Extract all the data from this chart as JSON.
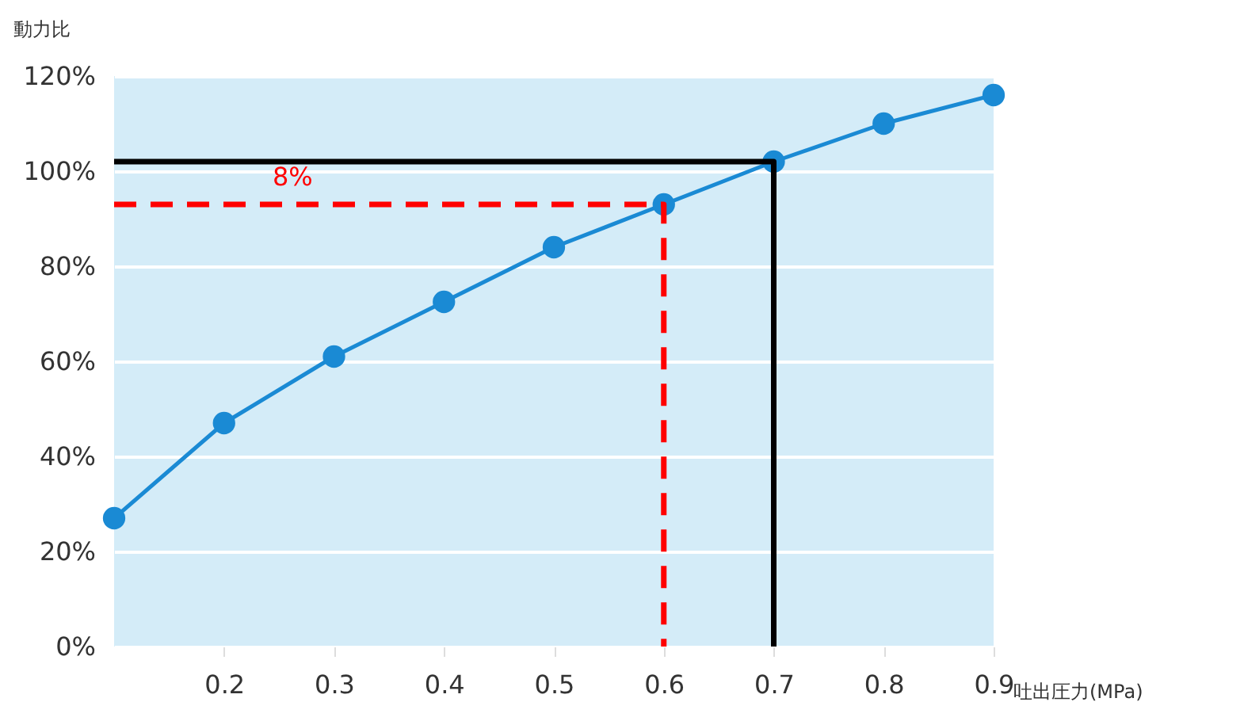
{
  "chart_data": {
    "type": "line",
    "xlabel": "吐出圧力(MPa)",
    "ylabel": "動力比",
    "xlim": [
      0.1,
      0.9
    ],
    "xticks": [
      0.2,
      0.3,
      0.4,
      0.5,
      0.6,
      0.7,
      0.8,
      0.9
    ],
    "ylim": [
      0,
      120
    ],
    "yticks": [
      {
        "value": 0,
        "label": "0%"
      },
      {
        "value": 20,
        "label": "20%"
      },
      {
        "value": 40,
        "label": "40%"
      },
      {
        "value": 60,
        "label": "60%"
      },
      {
        "value": 80,
        "label": "80%"
      },
      {
        "value": 100,
        "label": "100%"
      },
      {
        "value": 120,
        "label": "120%"
      }
    ],
    "grid": "y",
    "series": [
      {
        "type": "line",
        "color": "#1a8ad4",
        "marker": "circle",
        "line_style": "solid",
        "x": [
          0.1,
          0.2,
          0.3,
          0.4,
          0.5,
          0.6,
          0.7,
          0.8,
          0.9
        ],
        "values": [
          27,
          47,
          61,
          72.5,
          84,
          93,
          102,
          110,
          116
        ]
      },
      {
        "type": "line",
        "color": "#000000",
        "marker": "none",
        "line_style": "solid",
        "x": [
          0.1,
          0.7,
          0.7
        ],
        "values": [
          102,
          102,
          0
        ]
      },
      {
        "type": "line",
        "color": "#ff0000",
        "marker": "none",
        "line_style": "dashed",
        "x": [
          0.1,
          0.6,
          0.6
        ],
        "values": [
          93,
          93,
          0
        ]
      }
    ],
    "annotations": [
      "8%"
    ]
  }
}
